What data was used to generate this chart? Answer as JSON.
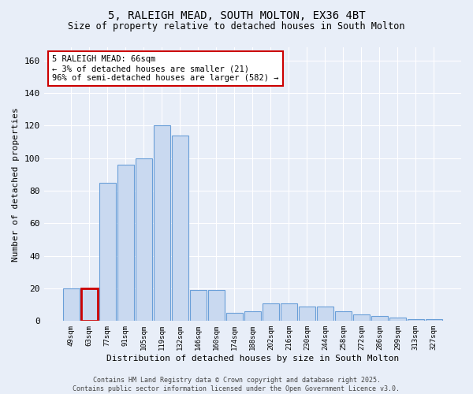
{
  "title": "5, RALEIGH MEAD, SOUTH MOLTON, EX36 4BT",
  "subtitle": "Size of property relative to detached houses in South Molton",
  "xlabel": "Distribution of detached houses by size in South Molton",
  "ylabel": "Number of detached properties",
  "categories": [
    "49sqm",
    "63sqm",
    "77sqm",
    "91sqm",
    "105sqm",
    "119sqm",
    "132sqm",
    "146sqm",
    "160sqm",
    "174sqm",
    "188sqm",
    "202sqm",
    "216sqm",
    "230sqm",
    "244sqm",
    "258sqm",
    "272sqm",
    "286sqm",
    "299sqm",
    "313sqm",
    "327sqm"
  ],
  "values": [
    20,
    20,
    85,
    96,
    100,
    120,
    114,
    19,
    19,
    5,
    6,
    11,
    11,
    9,
    9,
    6,
    4,
    3,
    2,
    1,
    1
  ],
  "bar_color": "#c9d9f0",
  "bar_edge_color": "#6a9fd8",
  "highlight_idx": 1,
  "annotation_text": "5 RALEIGH MEAD: 66sqm\n← 3% of detached houses are smaller (21)\n96% of semi-detached houses are larger (582) →",
  "annotation_box_facecolor": "#ffffff",
  "annotation_box_edgecolor": "#cc0000",
  "footer_line1": "Contains HM Land Registry data © Crown copyright and database right 2025.",
  "footer_line2": "Contains public sector information licensed under the Open Government Licence v3.0.",
  "background_color": "#e8eef8",
  "grid_color": "#ffffff",
  "ylim": [
    0,
    168
  ],
  "yticks": [
    0,
    20,
    40,
    60,
    80,
    100,
    120,
    140,
    160
  ]
}
